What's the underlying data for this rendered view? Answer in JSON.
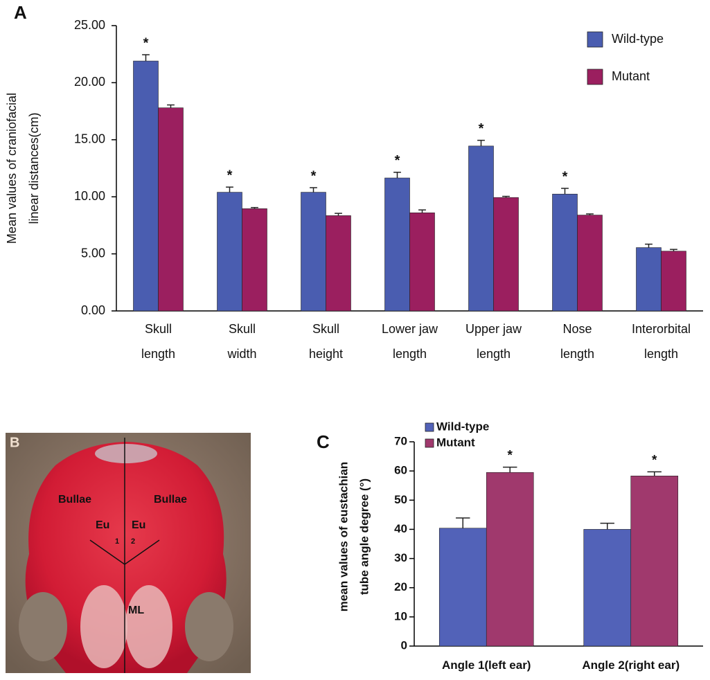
{
  "chart_data": [
    {
      "type": "bar",
      "panel": "A",
      "ylabel": [
        "Mean values of craniofacial",
        "linear distances(cm)"
      ],
      "categories": [
        [
          "Skull",
          "length"
        ],
        [
          "Skull",
          "width"
        ],
        [
          "Skull",
          "height"
        ],
        [
          "Lower jaw",
          "length"
        ],
        [
          "Upper jaw",
          "length"
        ],
        [
          "Nose",
          "length"
        ],
        [
          "Interorbital",
          "length"
        ]
      ],
      "series": [
        {
          "name": "Wild-type",
          "color": "#4a5db0",
          "values": [
            21.9,
            10.4,
            10.4,
            11.65,
            14.45,
            10.24,
            5.55
          ],
          "errors": [
            0.55,
            0.45,
            0.4,
            0.5,
            0.5,
            0.5,
            0.3
          ],
          "annotations": [
            "*",
            "*",
            "*",
            "*",
            "*",
            "*",
            null
          ]
        },
        {
          "name": "Mutant",
          "color": "#9b1f5f",
          "values": [
            17.8,
            8.96,
            8.35,
            8.6,
            9.94,
            8.4,
            5.24
          ],
          "errors": [
            0.25,
            0.1,
            0.2,
            0.25,
            0.1,
            0.1,
            0.15
          ]
        }
      ],
      "ylim": [
        0,
        25
      ],
      "yticks": [
        {
          "value": 0,
          "label": "0.00"
        },
        {
          "value": 5,
          "label": "5.00"
        },
        {
          "value": 10,
          "label": "10.00"
        },
        {
          "value": 15,
          "label": "15.00"
        },
        {
          "value": 20,
          "label": "20.00"
        },
        {
          "value": 25,
          "label": "25.00"
        }
      ],
      "legend": "upper right",
      "grid": false
    },
    {
      "type": "bar",
      "panel": "C",
      "ylabel": [
        "mean values  of eustachian",
        "tube angle degree (°)"
      ],
      "categories": [
        [
          "Angle 1(left ear)"
        ],
        [
          "Angle 2(right ear)"
        ]
      ],
      "series": [
        {
          "name": "Wild-type",
          "color": "#5262b8",
          "values": [
            40.4,
            40
          ],
          "errors": [
            3.5,
            2.1
          ]
        },
        {
          "name": "Mutant",
          "color": "#a0396d",
          "values": [
            59.5,
            58.3
          ],
          "errors": [
            1.8,
            1.4
          ],
          "annotations": [
            "*",
            "*"
          ]
        }
      ],
      "ylim": [
        0,
        70
      ],
      "yticks": [
        0,
        10,
        20,
        30,
        40,
        50,
        60,
        70
      ],
      "legend": "upper left",
      "grid": false
    }
  ],
  "panel_b": {
    "label": "B",
    "labels": [
      "Bullae",
      "Bullae",
      "Eu",
      "Eu",
      "1",
      "2",
      "ML"
    ]
  }
}
